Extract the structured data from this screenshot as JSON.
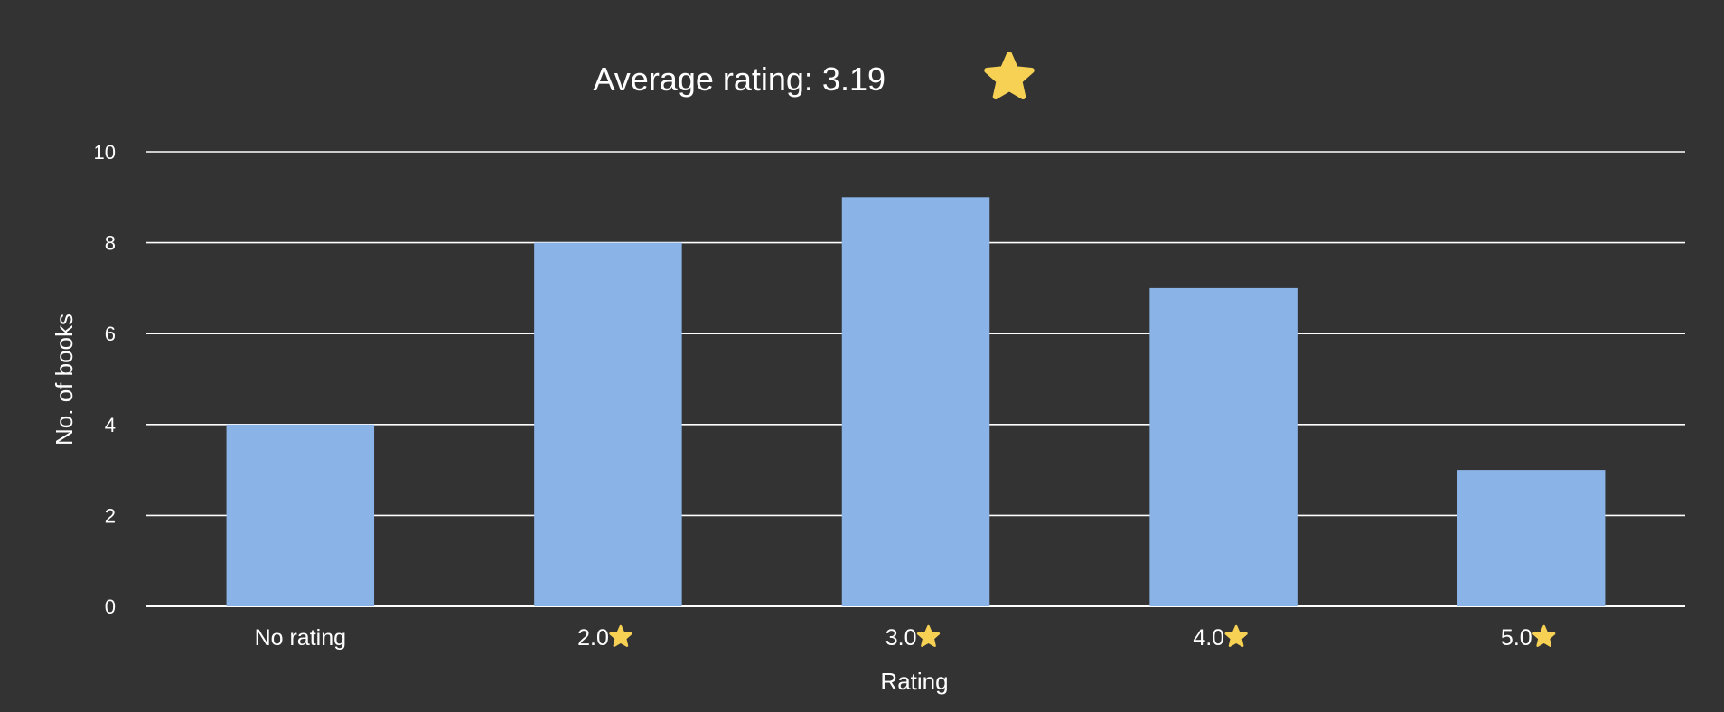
{
  "colors": {
    "background": "#333333",
    "bar": "#8ab4e8",
    "grid": "#ffffff",
    "text": "#ffffff",
    "star": "#f7d154"
  },
  "title": {
    "text": "Average rating: 3.19",
    "icon": "star-icon"
  },
  "chart_data": {
    "type": "bar",
    "title": "Average rating: 3.19",
    "xlabel": "Rating",
    "ylabel": "No. of books",
    "categories": [
      {
        "label": "No rating",
        "star": false
      },
      {
        "label": "2.0",
        "star": true
      },
      {
        "label": "3.0",
        "star": true
      },
      {
        "label": "4.0",
        "star": true
      },
      {
        "label": "5.0",
        "star": true
      }
    ],
    "values": [
      4,
      8,
      9,
      7,
      3
    ],
    "ylim": [
      0,
      10
    ],
    "yticks": [
      0,
      2,
      4,
      6,
      8,
      10
    ],
    "grid": true,
    "legend": "none"
  }
}
